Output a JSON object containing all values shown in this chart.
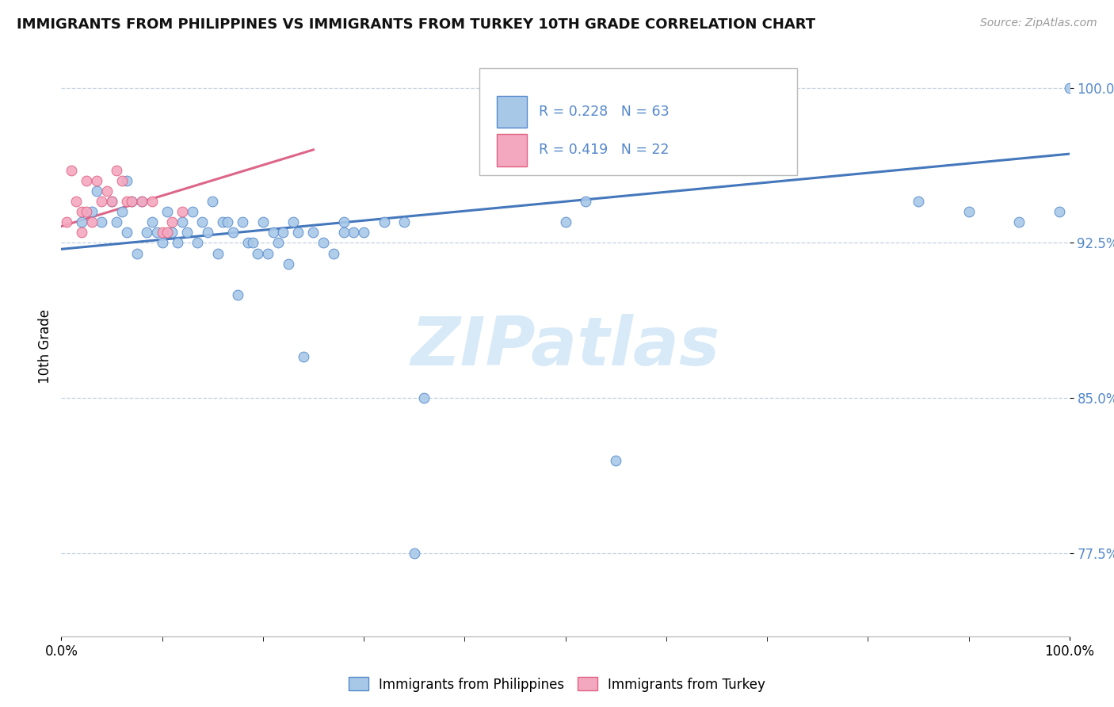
{
  "title": "IMMIGRANTS FROM PHILIPPINES VS IMMIGRANTS FROM TURKEY 10TH GRADE CORRELATION CHART",
  "source": "Source: ZipAtlas.com",
  "ylabel": "10th Grade",
  "legend_label_blue": "Immigrants from Philippines",
  "legend_label_pink": "Immigrants from Turkey",
  "R_blue": 0.228,
  "N_blue": 63,
  "R_pink": 0.419,
  "N_pink": 22,
  "blue_fill": "#a8c8e8",
  "blue_edge": "#5588cc",
  "pink_fill": "#f4a8c0",
  "pink_edge": "#e06080",
  "blue_line_color": "#4477bb",
  "pink_line_color": "#dd6688",
  "watermark_color": "#d8eaf8",
  "xlim": [
    0.0,
    1.0
  ],
  "ylim": [
    0.735,
    1.015
  ],
  "ytick_positions": [
    0.775,
    0.85,
    0.925,
    1.0
  ],
  "ytick_labels": [
    "77.5%",
    "85.0%",
    "92.5%",
    "100.0%"
  ],
  "blue_x": [
    0.02,
    0.03,
    0.035,
    0.04,
    0.05,
    0.055,
    0.06,
    0.065,
    0.065,
    0.07,
    0.075,
    0.08,
    0.085,
    0.09,
    0.095,
    0.1,
    0.105,
    0.11,
    0.115,
    0.12,
    0.125,
    0.13,
    0.135,
    0.14,
    0.145,
    0.15,
    0.155,
    0.16,
    0.165,
    0.17,
    0.175,
    0.18,
    0.185,
    0.19,
    0.195,
    0.2,
    0.205,
    0.21,
    0.215,
    0.22,
    0.225,
    0.23,
    0.235,
    0.24,
    0.25,
    0.26,
    0.27,
    0.28,
    0.29,
    0.3,
    0.32,
    0.34,
    0.36,
    0.28,
    0.5,
    0.52,
    0.55,
    0.35,
    0.85,
    0.9,
    0.95,
    0.99,
    1.0
  ],
  "blue_y": [
    0.935,
    0.94,
    0.95,
    0.935,
    0.945,
    0.935,
    0.94,
    0.955,
    0.93,
    0.945,
    0.92,
    0.945,
    0.93,
    0.935,
    0.93,
    0.925,
    0.94,
    0.93,
    0.925,
    0.935,
    0.93,
    0.94,
    0.925,
    0.935,
    0.93,
    0.945,
    0.92,
    0.935,
    0.935,
    0.93,
    0.9,
    0.935,
    0.925,
    0.925,
    0.92,
    0.935,
    0.92,
    0.93,
    0.925,
    0.93,
    0.915,
    0.935,
    0.93,
    0.87,
    0.93,
    0.925,
    0.92,
    0.935,
    0.93,
    0.93,
    0.935,
    0.935,
    0.85,
    0.93,
    0.935,
    0.945,
    0.82,
    0.775,
    0.945,
    0.94,
    0.935,
    0.94,
    1.0
  ],
  "pink_x": [
    0.005,
    0.01,
    0.015,
    0.02,
    0.025,
    0.02,
    0.025,
    0.03,
    0.035,
    0.04,
    0.045,
    0.05,
    0.055,
    0.06,
    0.065,
    0.07,
    0.08,
    0.09,
    0.1,
    0.105,
    0.11,
    0.12
  ],
  "pink_y": [
    0.935,
    0.96,
    0.945,
    0.94,
    0.955,
    0.93,
    0.94,
    0.935,
    0.955,
    0.945,
    0.95,
    0.945,
    0.96,
    0.955,
    0.945,
    0.945,
    0.945,
    0.945,
    0.93,
    0.93,
    0.935,
    0.94
  ],
  "blue_line_x": [
    0.0,
    1.0
  ],
  "blue_line_y": [
    0.922,
    0.968
  ],
  "pink_line_x": [
    0.0,
    0.25
  ],
  "pink_line_y": [
    0.933,
    0.97
  ]
}
